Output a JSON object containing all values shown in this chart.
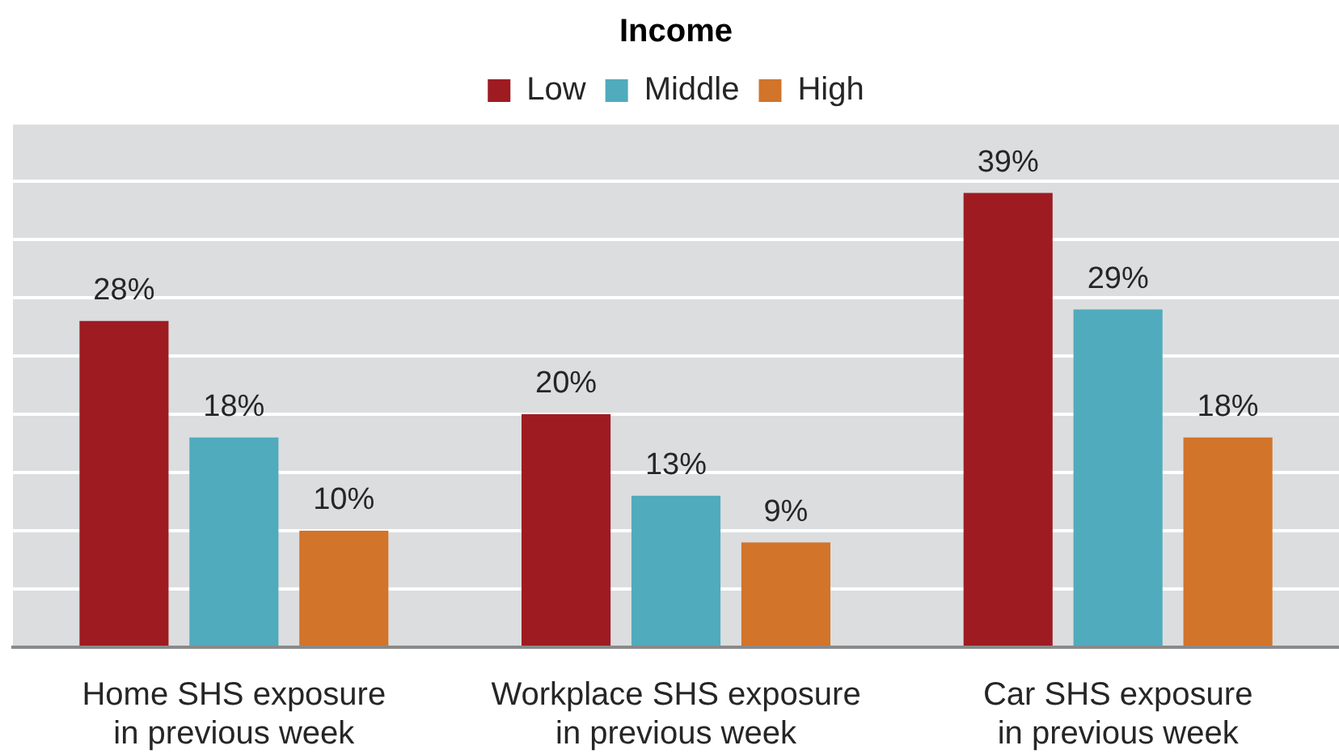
{
  "chart_data": {
    "type": "bar",
    "legend_title": "Income",
    "categories": [
      "Home SHS exposure\nin previous week",
      "Workplace SHS exposure\nin previous week",
      "Car SHS exposure\nin previous week"
    ],
    "series": [
      {
        "name": "Low",
        "color": "#9e1b22",
        "values": [
          28,
          20,
          39
        ],
        "value_labels": [
          "28%",
          "20%",
          "39%"
        ]
      },
      {
        "name": "Middle",
        "color": "#50abbd",
        "values": [
          18,
          13,
          29
        ],
        "value_labels": [
          "18%",
          "13%",
          "29%"
        ]
      },
      {
        "name": "High",
        "color": "#d2742a",
        "values": [
          10,
          9,
          18
        ],
        "value_labels": [
          "10%",
          "9%",
          "18%"
        ]
      }
    ],
    "ylim": [
      0,
      45
    ],
    "yticks": [
      {
        "value": 0,
        "label": null
      },
      {
        "value": 5,
        "label": null
      },
      {
        "value": 10,
        "label": null
      },
      {
        "value": 15,
        "label": null
      },
      {
        "value": 20,
        "label": null
      },
      {
        "value": 25,
        "label": null
      },
      {
        "value": 30,
        "label": null
      },
      {
        "value": 35,
        "label": null
      },
      {
        "value": 40,
        "label": null
      },
      {
        "value": 45,
        "label": null
      }
    ],
    "grid": "y",
    "legend": "top",
    "tick_labels": "x"
  }
}
